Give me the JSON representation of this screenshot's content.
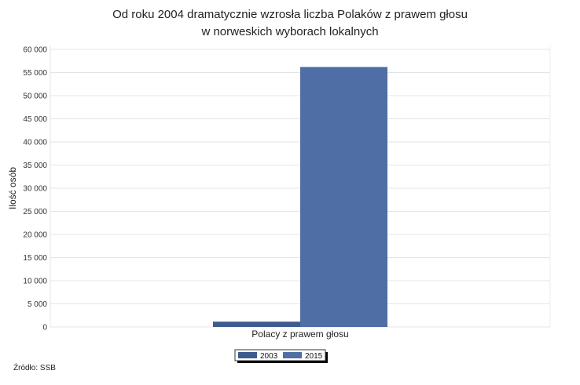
{
  "chart_data": {
    "type": "bar",
    "title": [
      "Od roku 2004 dramatycznie wzrosła liczba Polaków z prawem głosu",
      "w norweskich wyborach lokalnych"
    ],
    "xlabel": "",
    "ylabel": "Ilość osób",
    "categories": [
      "Polacy z prawem głosu"
    ],
    "series": [
      {
        "name": "2003",
        "values": [
          1150
        ],
        "color": "#3e5b8f"
      },
      {
        "name": "2015",
        "values": [
          56200
        ],
        "color": "#4f6ea5"
      }
    ],
    "ylim": [
      0,
      60000
    ],
    "yticks": [
      0,
      5000,
      10000,
      15000,
      20000,
      25000,
      30000,
      35000,
      40000,
      45000,
      50000,
      55000,
      60000
    ],
    "ytick_labels": [
      "0",
      "5 000",
      "10 000",
      "15 000",
      "20 000",
      "25 000",
      "30 000",
      "35 000",
      "40 000",
      "45 000",
      "50 000",
      "55 000",
      "60 000"
    ],
    "grid": true,
    "legend": "bottom"
  },
  "source": "Źródło: SSB"
}
